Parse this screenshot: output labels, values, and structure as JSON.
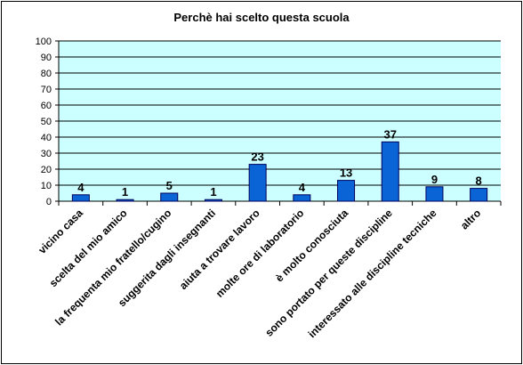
{
  "chart_data": {
    "type": "bar",
    "title": "Perchè hai scelto questa scuola",
    "xlabel": "",
    "ylabel": "",
    "ylim": [
      0,
      100
    ],
    "yticks": [
      0,
      10,
      20,
      30,
      40,
      50,
      60,
      70,
      80,
      90,
      100
    ],
    "grid": true,
    "legend": "none",
    "categories": [
      "vicino casa",
      "scelta del mio amico",
      "la frequenta mio fratello/cugino",
      "suggerita dagli insegnanti",
      "aiuta a trovare lavoro",
      "molte ore di laboratorio",
      "è molto conosciuta",
      "sono portato per queste discipline",
      "interessato alle discipline tecniche",
      "altro"
    ],
    "values": [
      4,
      1,
      5,
      1,
      23,
      4,
      13,
      37,
      9,
      8
    ],
    "colors": {
      "bar": "#0a64d6",
      "bar_border": "#00005a",
      "plot_background": "#ccffff",
      "grid": "#000000"
    }
  }
}
